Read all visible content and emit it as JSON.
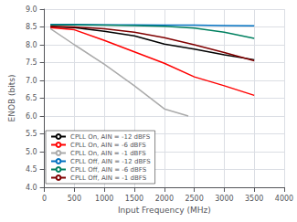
{
  "chart_data": {
    "type": "line",
    "xlabel": "Input Frequency (MHz)",
    "ylabel": "ENOB (bits)",
    "xlim": [
      0,
      4000
    ],
    "ylim": [
      4,
      9
    ],
    "xticks": [
      0,
      500,
      1000,
      1500,
      2000,
      2500,
      3000,
      3500,
      4000
    ],
    "yticks": [
      {
        "value": 4,
        "label": "4.0"
      },
      4.5,
      {
        "value": 5,
        "label": "5.0"
      },
      5.5,
      {
        "value": 6,
        "label": "6.0"
      },
      6.5,
      {
        "value": 7,
        "label": "7.0"
      },
      7.5,
      {
        "value": 8,
        "label": "8.0"
      },
      8.5,
      {
        "value": 9,
        "label": "9.0"
      }
    ],
    "grid": true,
    "legend": "lower left",
    "series": [
      {
        "name": "CPLL On, AIN = -12 dBFS",
        "color": "#000000",
        "x": [
          100,
          500,
          1000,
          1500,
          2000,
          2500,
          3000,
          3500
        ],
        "values": [
          8.5,
          8.48,
          8.38,
          8.25,
          8.02,
          7.88,
          7.72,
          7.58
        ]
      },
      {
        "name": "CPLL On, AIN = -6 dBFS",
        "color": "#ff0000",
        "x": [
          100,
          500,
          1000,
          1500,
          2000,
          2500,
          3000,
          3500
        ],
        "values": [
          8.48,
          8.42,
          8.12,
          7.8,
          7.48,
          7.1,
          6.85,
          6.58
        ]
      },
      {
        "name": "CPLL On, AIN = -1 dBFS",
        "color": "#aaaaaa",
        "x": [
          100,
          500,
          1000,
          1500,
          2000,
          2400
        ],
        "values": [
          8.45,
          8.0,
          7.45,
          6.85,
          6.2,
          6.0
        ]
      },
      {
        "name": "CPLL Off, AIN = -12 dBFS",
        "color": "#0070c0",
        "x": [
          100,
          500,
          1000,
          1500,
          2000,
          2500,
          3000,
          3500
        ],
        "values": [
          8.57,
          8.57,
          8.56,
          8.56,
          8.55,
          8.55,
          8.54,
          8.53
        ]
      },
      {
        "name": "CPLL Off, AIN = -6 dBFS",
        "color": "#008060",
        "x": [
          100,
          500,
          1000,
          1500,
          2000,
          2500,
          3000,
          3500
        ],
        "values": [
          8.56,
          8.56,
          8.55,
          8.54,
          8.52,
          8.47,
          8.35,
          8.18
        ]
      },
      {
        "name": "CPLL Off, AIN = -1 dBFS",
        "color": "#800000",
        "x": [
          100,
          500,
          1000,
          1500,
          2000,
          2500,
          3000,
          3500
        ],
        "values": [
          8.52,
          8.5,
          8.45,
          8.35,
          8.2,
          8.0,
          7.78,
          7.55
        ]
      }
    ]
  }
}
